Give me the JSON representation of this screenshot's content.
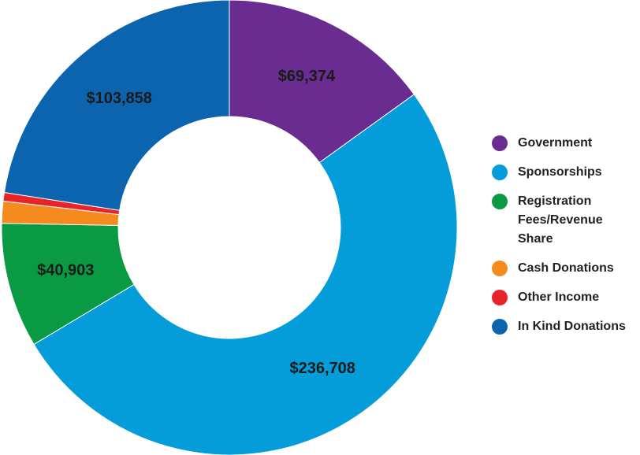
{
  "chart_data": {
    "type": "pie",
    "variant": "donut",
    "categories": [
      "Government",
      "Sponsorships",
      "Registration Fees/Revenue Share",
      "Cash Donations",
      "Other Income",
      "In Kind Donations"
    ],
    "values": [
      69374,
      236708,
      40903,
      7200,
      2800,
      103858
    ],
    "slice_labels": [
      "$69,374",
      "$236,708",
      "$40,903",
      "",
      "",
      "$103,858"
    ],
    "colors": [
      "#6a2c91",
      "#049cd9",
      "#0a9a43",
      "#f58a1f",
      "#e8232a",
      "#0b64ad"
    ],
    "title": "",
    "legend_position": "right"
  },
  "legend": {
    "items": [
      {
        "label": "Government",
        "color": "#6a2c91"
      },
      {
        "label": "Sponsorships",
        "color": "#049cd9"
      },
      {
        "label": "Registration Fees/Revenue Share",
        "color": "#0a9a43"
      },
      {
        "label": "Cash Donations",
        "color": "#f58a1f"
      },
      {
        "label": "Other Income",
        "color": "#e8232a"
      },
      {
        "label": "In Kind Donations",
        "color": "#0b64ad"
      }
    ]
  }
}
